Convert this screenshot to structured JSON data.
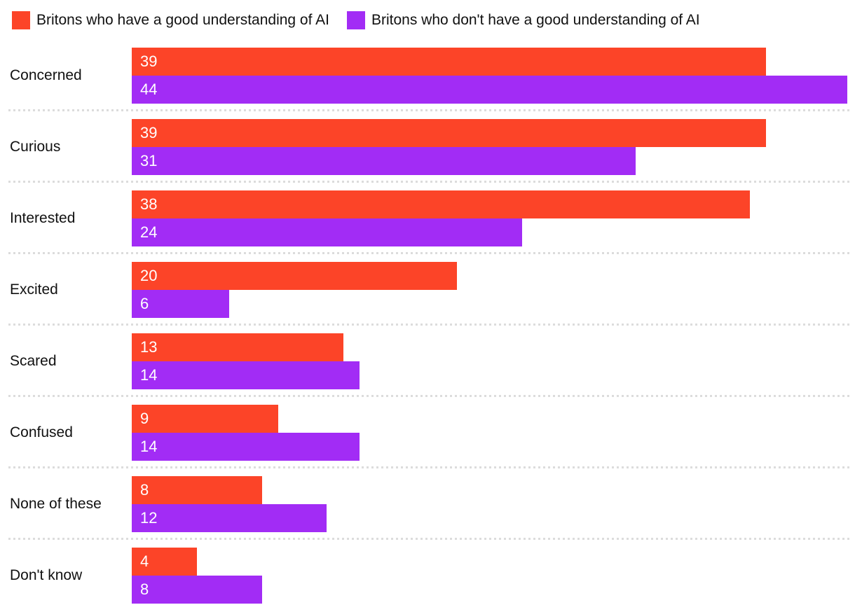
{
  "chart_data": {
    "type": "bar",
    "orientation": "horizontal",
    "title": "",
    "categories": [
      "Concerned",
      "Curious",
      "Interested",
      "Excited",
      "Scared",
      "Confused",
      "None of these",
      "Don't know"
    ],
    "series": [
      {
        "name": "Britons who have a good understanding of AI",
        "color": "#fc4428",
        "values": [
          39,
          39,
          38,
          20,
          13,
          9,
          8,
          4
        ]
      },
      {
        "name": "Britons who don't have a good understanding of AI",
        "color": "#a22cf5",
        "values": [
          44,
          31,
          24,
          6,
          14,
          14,
          12,
          8
        ]
      }
    ],
    "xlim": [
      0,
      44
    ],
    "xlabel": "",
    "ylabel": "",
    "grid": false,
    "legend_position": "top",
    "value_labels": "inside-start",
    "value_label_color": "#ffffff",
    "category_label_color": "#111111",
    "separator_style": "dotted",
    "separator_color": "#dcdcdc",
    "background_color": "#ffffff"
  }
}
